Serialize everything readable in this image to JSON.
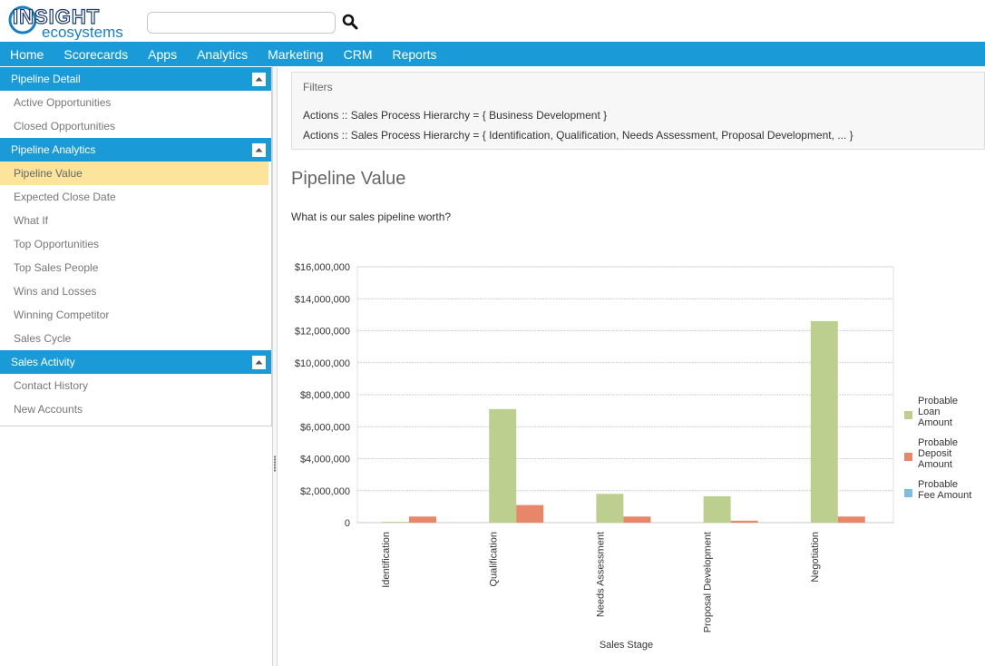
{
  "header": {
    "logo_text_top": "INSIGHT",
    "logo_text_bottom": "ecosystems",
    "search_value": "",
    "search_icon": "search-icon"
  },
  "nav": {
    "items": [
      "Home",
      "Scorecards",
      "Apps",
      "Analytics",
      "Marketing",
      "CRM",
      "Reports"
    ]
  },
  "sidebar": {
    "sections": [
      {
        "title": "Pipeline Detail",
        "items": [
          {
            "label": "Active Opportunities"
          },
          {
            "label": "Closed Opportunities"
          }
        ]
      },
      {
        "title": "Pipeline Analytics",
        "items": [
          {
            "label": "Pipeline Value"
          },
          {
            "label": "Expected Close Date"
          },
          {
            "label": "What If"
          },
          {
            "label": "Top Opportunities"
          },
          {
            "label": "Top Sales People"
          },
          {
            "label": "Wins and Losses"
          },
          {
            "label": "Winning Competitor"
          },
          {
            "label": "Sales Cycle"
          }
        ]
      },
      {
        "title": "Sales Activity",
        "items": [
          {
            "label": "Contact History"
          },
          {
            "label": "New Accounts"
          }
        ]
      }
    ],
    "active_item": "Pipeline Value"
  },
  "filters": {
    "title": "Filters",
    "lines": [
      "Actions :: Sales Process Hierarchy = { Business Development }",
      "Actions :: Sales Process Hierarchy = { Identification, Qualification, Needs Assessment, Proposal Development, ... }"
    ]
  },
  "page": {
    "title": "Pipeline Value",
    "question": "What is our sales pipeline worth?"
  },
  "colors": {
    "accent": "#1a9bd7",
    "active_item": "#fde49c",
    "series": [
      "#bccf8f",
      "#e8866a",
      "#7fbfdc"
    ]
  },
  "chart_data": {
    "type": "bar",
    "categories": [
      "Identification",
      "Qualification",
      "Needs Assessment",
      "Proposal Development",
      "Negotiation"
    ],
    "series": [
      {
        "name": "Probable Loan Amount",
        "legend_lines": [
          "Probable",
          "Loan",
          "Amount"
        ],
        "values": [
          50000,
          7100000,
          1800000,
          1650000,
          12600000
        ]
      },
      {
        "name": "Probable Deposit Amount",
        "legend_lines": [
          "Probable",
          "Deposit",
          "Amount"
        ],
        "values": [
          380000,
          1100000,
          380000,
          120000,
          380000
        ]
      },
      {
        "name": "Probable Fee Amount",
        "legend_lines": [
          "Probable",
          "Fee Amount"
        ],
        "values": [
          0,
          0,
          0,
          0,
          0
        ]
      }
    ],
    "xlabel": "Sales Stage",
    "ylabel": "",
    "ylim": [
      0,
      16000000
    ],
    "yticks": [
      0,
      2000000,
      4000000,
      6000000,
      8000000,
      10000000,
      12000000,
      14000000,
      16000000
    ],
    "ytick_labels": [
      "0",
      "$2,000,000",
      "$4,000,000",
      "$6,000,000",
      "$8,000,000",
      "$10,000,000",
      "$12,000,000",
      "$14,000,000",
      "$16,000,000"
    ],
    "grid": true,
    "legend": "right"
  }
}
